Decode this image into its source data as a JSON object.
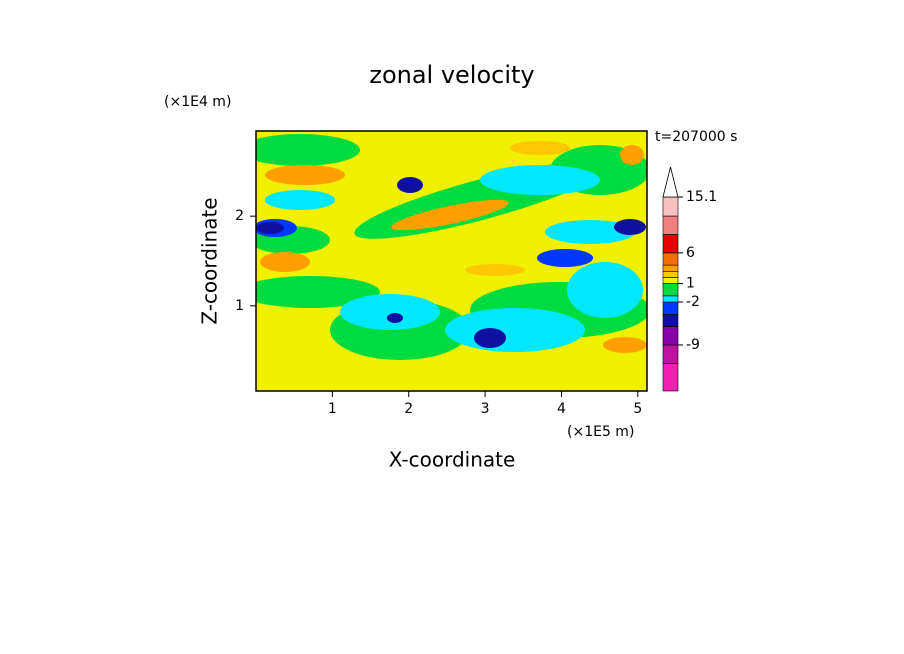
{
  "chart_data": {
    "type": "contour",
    "title": "zonal velocity",
    "subtitle": "t=207000 s",
    "x_label": "X-coordinate",
    "x_unit": "(×1E5 m)",
    "y_label": "Z-coordinate",
    "y_unit": "(×1E4 m)",
    "xlim": [
      0,
      5.12
    ],
    "xticks": [
      1,
      2,
      3,
      4,
      5
    ],
    "ylim": [
      0.05,
      2.95
    ],
    "yticks": [
      1,
      2
    ],
    "colorbar": {
      "levels": [
        -16.5,
        -12,
        -9,
        -6,
        -4,
        -2,
        -1,
        1,
        2,
        3,
        4,
        6,
        9,
        12,
        15.1
      ],
      "colors": [
        "#f020b0",
        "#c010a0",
        "#8800a8",
        "#1010a0",
        "#0038ff",
        "#00e8ff",
        "#00dc40",
        "#f0f000",
        "#ffc800",
        "#ffa000",
        "#f07000",
        "#e60000",
        "#f08080",
        "#f8c0c0"
      ],
      "ticks": [
        -9,
        -2,
        1,
        6,
        15.1
      ]
    }
  }
}
